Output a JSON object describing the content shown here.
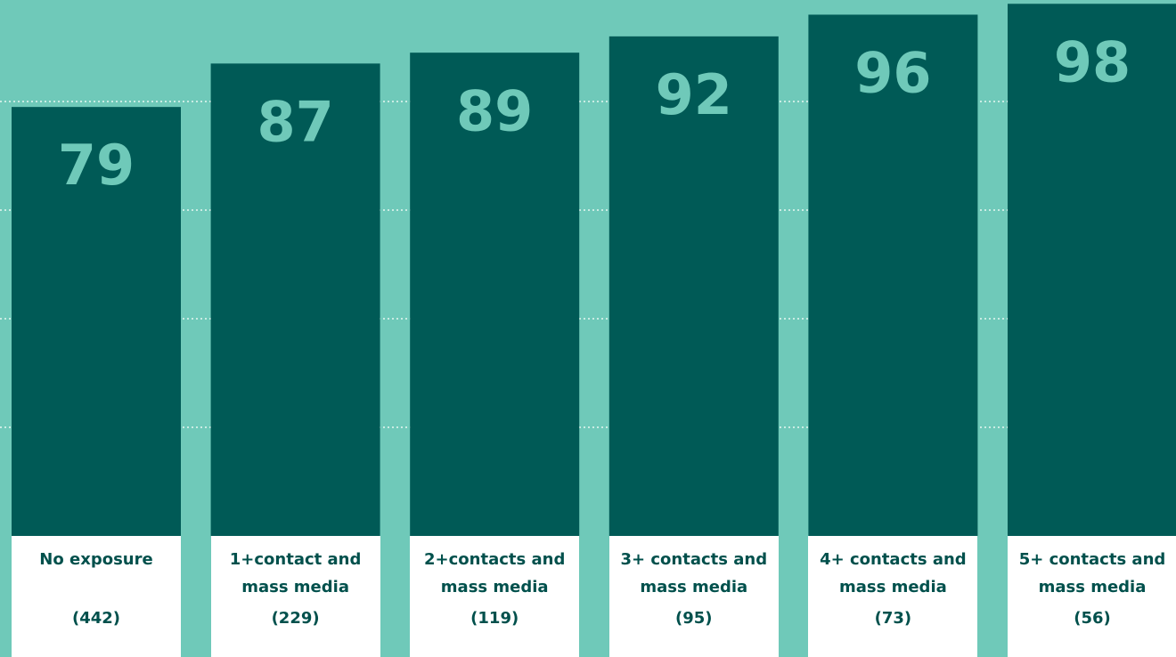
{
  "chart_data": {
    "type": "bar",
    "categories": [
      "No exposure",
      "1+contact and mass media",
      "2+contacts and mass media",
      "3+ contacts and mass media",
      "4+ contacts and mass media",
      "5+ contacts and mass media"
    ],
    "sample_sizes": [
      "(442)",
      "(229)",
      "(119)",
      "(95)",
      "(73)",
      "(56)"
    ],
    "values": [
      79,
      87,
      89,
      92,
      96,
      98
    ],
    "color": "#005a56",
    "ylim": [
      0,
      98.7
    ],
    "yticks": [
      20,
      40,
      60,
      80
    ],
    "grid": true
  }
}
